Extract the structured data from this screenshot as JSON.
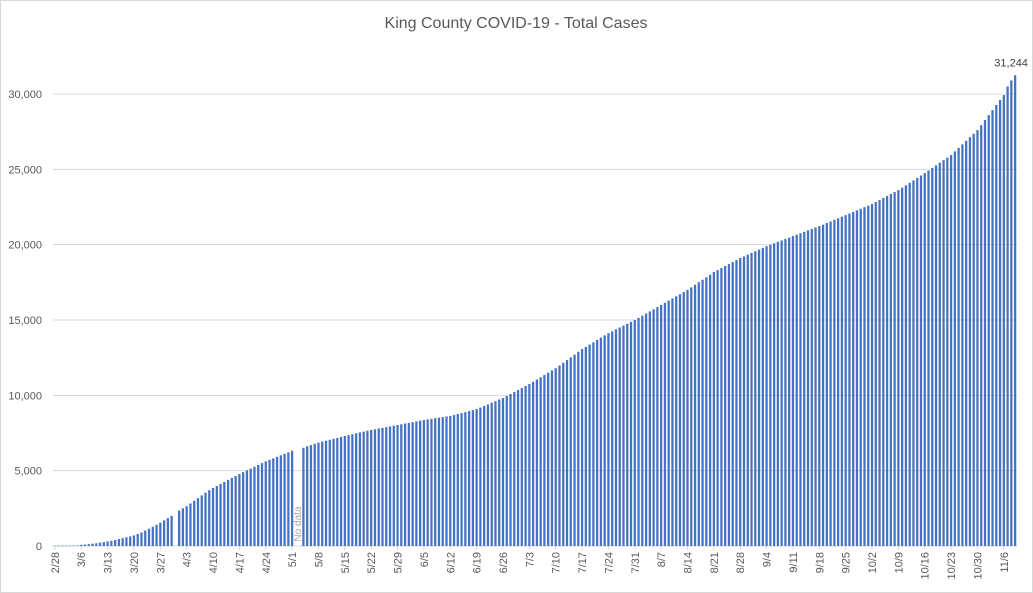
{
  "chart_data": {
    "type": "bar",
    "title": "King County COVID-19 - Total Cases",
    "xlabel": "",
    "ylabel": "",
    "ylim": [
      0,
      30000
    ],
    "y_ticks": [
      0,
      5000,
      10000,
      15000,
      20000,
      25000,
      30000
    ],
    "y_tick_labels": [
      "0",
      "5,000",
      "10,000",
      "15,000",
      "20,000",
      "25,000",
      "30,000"
    ],
    "grid": true,
    "bar_color": "#4472c4",
    "x_start": "2/28",
    "x_end": "11/9",
    "x_tick_interval_days": 7,
    "x_tick_labels": [
      "2/28",
      "3/6",
      "3/13",
      "3/20",
      "3/27",
      "4/3",
      "4/10",
      "4/17",
      "4/24",
      "5/1",
      "5/8",
      "5/15",
      "5/22",
      "5/29",
      "6/5",
      "6/12",
      "6/19",
      "6/26",
      "7/3",
      "7/10",
      "7/17",
      "7/24",
      "7/31",
      "8/7",
      "8/14",
      "8/21",
      "8/28",
      "9/4",
      "9/11",
      "9/18",
      "9/25",
      "10/2",
      "10/9",
      "10/16",
      "10/23",
      "10/30",
      "11/6"
    ],
    "annotations": {
      "no_data": "No data",
      "last_value_label": "31,244"
    },
    "values": [
      18,
      18,
      19,
      21,
      27,
      31,
      39,
      80,
      100,
      120,
      150,
      180,
      220,
      260,
      300,
      350,
      400,
      460,
      520,
      580,
      640,
      700,
      800,
      900,
      1020,
      1150,
      1280,
      1410,
      1550,
      1700,
      1850,
      2000,
      null,
      2350,
      2500,
      2640,
      2820,
      3000,
      3180,
      3360,
      3540,
      3700,
      3850,
      3980,
      4120,
      4250,
      4390,
      4520,
      4650,
      4780,
      4900,
      5020,
      5140,
      5260,
      5380,
      5500,
      5620,
      5720,
      5820,
      5920,
      6020,
      6120,
      6220,
      6320,
      null,
      null,
      6520,
      6620,
      6700,
      6790,
      6870,
      6930,
      6990,
      7050,
      7110,
      7170,
      7240,
      7300,
      7360,
      7420,
      7480,
      7540,
      7590,
      7650,
      7700,
      7750,
      7800,
      7840,
      7890,
      7940,
      7990,
      8030,
      8080,
      8130,
      8170,
      8220,
      8270,
      8320,
      8360,
      8400,
      8440,
      8480,
      8520,
      8560,
      8600,
      8630,
      8690,
      8760,
      8820,
      8890,
      8950,
      9020,
      9090,
      9190,
      9300,
      9400,
      9510,
      9610,
      9720,
      9820,
      9950,
      10090,
      10220,
      10350,
      10480,
      10620,
      10750,
      10900,
      11050,
      11200,
      11350,
      11500,
      11650,
      11800,
      11980,
      12160,
      12340,
      12520,
      12700,
      12890,
      13070,
      13220,
      13370,
      13520,
      13680,
      13830,
      13980,
      14130,
      14250,
      14380,
      14500,
      14630,
      14750,
      14880,
      15000,
      15140,
      15290,
      15430,
      15570,
      15710,
      15860,
      16000,
      16140,
      16290,
      16430,
      16570,
      16710,
      16860,
      17000,
      17170,
      17340,
      17510,
      17670,
      17840,
      18010,
      18180,
      18310,
      18450,
      18580,
      18710,
      18840,
      18980,
      19110,
      19220,
      19340,
      19450,
      19560,
      19670,
      19790,
      19900,
      20000,
      20090,
      20190,
      20280,
      20380,
      20470,
      20570,
      20660,
      20760,
      20850,
      20950,
      21040,
      21140,
      21230,
      21330,
      21440,
      21540,
      21650,
      21750,
      21860,
      21960,
      22070,
      22170,
      22280,
      22380,
      22490,
      22590,
      22700,
      22830,
      22960,
      23100,
      23230,
      23360,
      23490,
      23620,
      23780,
      23940,
      24100,
      24270,
      24430,
      24590,
      24750,
      24920,
      25090,
      25260,
      25440,
      25610,
      25780,
      25950,
      26190,
      26420,
      26660,
      26890,
      27130,
      27360,
      27600,
      27930,
      28270,
      28600,
      28930,
      29270,
      29600,
      29930,
      30500,
      30900,
      31244
    ]
  }
}
